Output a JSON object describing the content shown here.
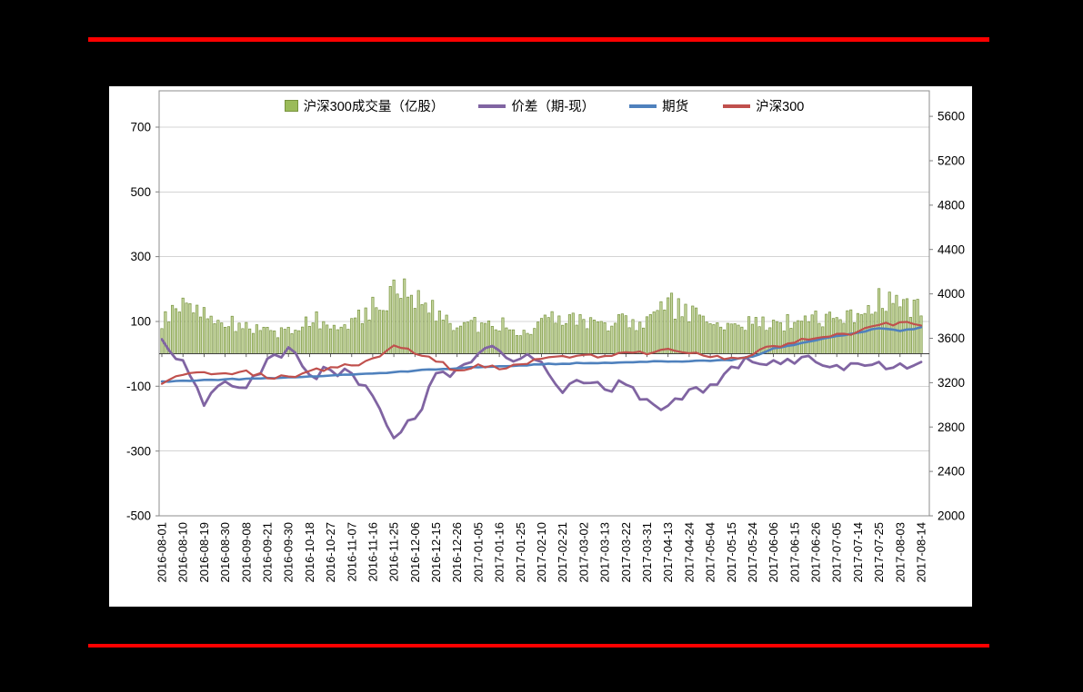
{
  "page": {
    "background_color": "#000000",
    "rule_color": "#ff0000",
    "panel_color": "#ffffff"
  },
  "chart_data": {
    "type": "combo",
    "title": "",
    "legend_position": "top-center",
    "grid": "horizontal",
    "x_labels": [
      "2016-08-01",
      "2016-08-10",
      "2016-08-19",
      "2016-08-30",
      "2016-09-08",
      "2016-09-21",
      "2016-09-30",
      "2016-10-18",
      "2016-10-27",
      "2016-11-07",
      "2016-11-16",
      "2016-11-25",
      "2016-12-06",
      "2016-12-15",
      "2016-12-26",
      "2017-01-05",
      "2017-01-16",
      "2017-01-25",
      "2017-02-10",
      "2017-02-21",
      "2017-03-02",
      "2017-03-13",
      "2017-03-22",
      "2017-03-31",
      "2017-04-13",
      "2017-04-24",
      "2017-05-04",
      "2017-05-15",
      "2017-05-24",
      "2017-06-06",
      "2017-06-15",
      "2017-06-26",
      "2017-07-05",
      "2017-07-14",
      "2017-07-25",
      "2017-08-03",
      "2017-08-14"
    ],
    "left_axis": {
      "ticks": [
        700,
        500,
        300,
        100,
        -100,
        -300,
        -500
      ],
      "min": -500,
      "max": 812
    },
    "right_axis": {
      "ticks": [
        5600,
        5200,
        4800,
        4400,
        4000,
        3600,
        3200,
        2800,
        2400,
        2000
      ],
      "min": 2000,
      "max": 5830
    },
    "series": [
      {
        "name": "沪深300成交量（亿股）",
        "type": "bar",
        "axis": "left",
        "color": "#9bbb59",
        "fill_color": "#c6d6a0",
        "border_color": "#77933c",
        "values": [
          90,
          165,
          130,
          95,
          85,
          70,
          65,
          110,
          100,
          105,
          140,
          185,
          190,
          140,
          85,
          90,
          95,
          60,
          100,
          110,
          100,
          95,
          100,
          90,
          150,
          130,
          100,
          90,
          95,
          90,
          100,
          110,
          110,
          130,
          160,
          140,
          130
        ]
      },
      {
        "name": "价差（期-现）",
        "type": "line",
        "axis": "left",
        "color": "#8064a2",
        "values": [
          45,
          -20,
          -160,
          -85,
          -105,
          -15,
          20,
          -65,
          -50,
          -60,
          -130,
          -260,
          -200,
          -60,
          -45,
          0,
          10,
          -15,
          -25,
          -120,
          -90,
          -110,
          -95,
          -140,
          -160,
          -110,
          -95,
          -40,
          -25,
          -20,
          -30,
          -25,
          -35,
          -30,
          -25,
          -30,
          -25
        ]
      },
      {
        "name": "期货",
        "type": "line",
        "axis": "right",
        "color": "#4f81bd",
        "values": [
          3210,
          3218,
          3225,
          3230,
          3236,
          3242,
          3248,
          3256,
          3264,
          3272,
          3282,
          3295,
          3308,
          3318,
          3328,
          3338,
          3348,
          3356,
          3364,
          3370,
          3375,
          3380,
          3384,
          3387,
          3390,
          3393,
          3396,
          3402,
          3435,
          3510,
          3540,
          3580,
          3620,
          3650,
          3690,
          3665,
          3700
        ]
      },
      {
        "name": "沪深300",
        "type": "line",
        "axis": "right",
        "color": "#c0504d",
        "values": [
          3190,
          3270,
          3295,
          3285,
          3310,
          3240,
          3255,
          3305,
          3340,
          3355,
          3420,
          3535,
          3460,
          3390,
          3310,
          3365,
          3320,
          3365,
          3415,
          3440,
          3450,
          3440,
          3475,
          3455,
          3505,
          3465,
          3430,
          3425,
          3450,
          3530,
          3560,
          3600,
          3640,
          3660,
          3720,
          3745,
          3715
        ]
      }
    ]
  }
}
